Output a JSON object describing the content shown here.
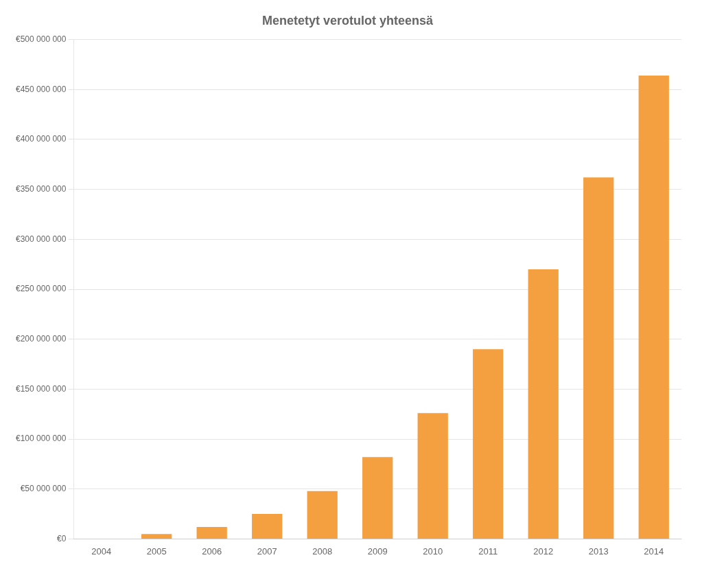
{
  "chart_data": {
    "type": "bar",
    "title": "Menetetyt verotulot yhteensä",
    "categories": [
      "2004",
      "2005",
      "2006",
      "2007",
      "2008",
      "2009",
      "2010",
      "2011",
      "2012",
      "2013",
      "2014"
    ],
    "values": [
      0,
      5000000,
      12000000,
      25000000,
      48000000,
      82000000,
      126000000,
      190000000,
      270000000,
      362000000,
      464000000
    ],
    "color": "#F5A040",
    "ylim": [
      0,
      500000000
    ],
    "yticks": [
      {
        "value": 0,
        "label": "€0"
      },
      {
        "value": 50000000,
        "label": "€50 000 000"
      },
      {
        "value": 100000000,
        "label": "€100 000 000"
      },
      {
        "value": 150000000,
        "label": "€150 000 000"
      },
      {
        "value": 200000000,
        "label": "€200 000 000"
      },
      {
        "value": 250000000,
        "label": "€250 000 000"
      },
      {
        "value": 300000000,
        "label": "€300 000 000"
      },
      {
        "value": 350000000,
        "label": "€350 000 000"
      },
      {
        "value": 400000000,
        "label": "€400 000 000"
      },
      {
        "value": 450000000,
        "label": "€450 000 000"
      },
      {
        "value": 500000000,
        "label": "€500 000 000"
      }
    ],
    "grid": true
  }
}
